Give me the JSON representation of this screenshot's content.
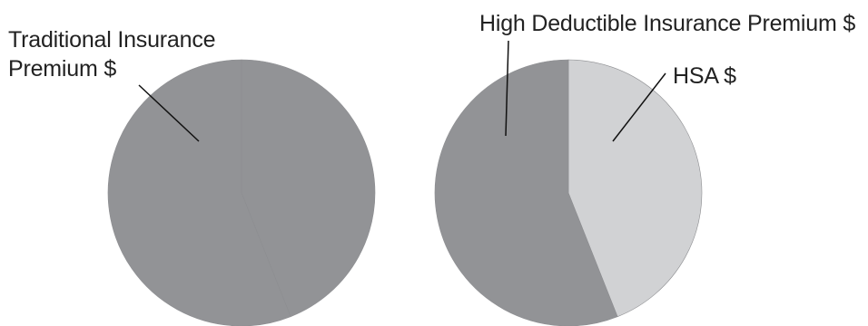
{
  "chart_data": [
    {
      "type": "pie",
      "title": "",
      "slices": [
        {
          "label": "Traditional Insurance Premium $",
          "label_lines": [
            "Traditional Insurance",
            "Premium $"
          ],
          "value": 44,
          "color": "#929396"
        },
        {
          "label": "",
          "value": 56,
          "color": "#929396"
        }
      ]
    },
    {
      "type": "pie",
      "title": "",
      "slices": [
        {
          "label": "HSA $",
          "label_lines": [
            "HSA $"
          ],
          "value": 44,
          "color": "#D1D2D4"
        },
        {
          "label": "High Deductible Insurance Premium $",
          "label_lines": [
            "High Deductible Insurance Premium $"
          ],
          "value": 56,
          "color": "#929396"
        }
      ]
    }
  ]
}
